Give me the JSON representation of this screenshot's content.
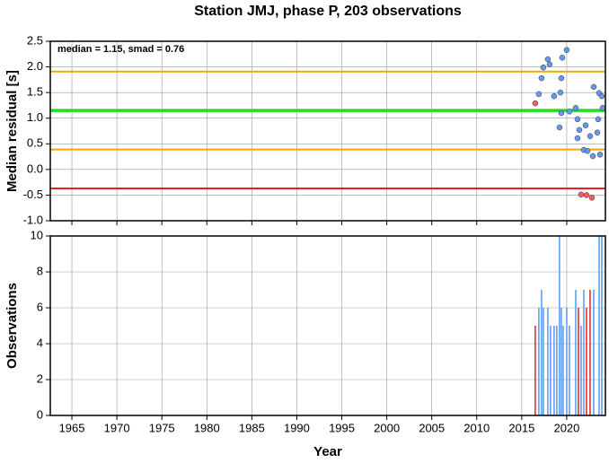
{
  "chart_data": [
    {
      "type": "scatter",
      "title": "Station JMJ, phase P, 203 observations",
      "ylabel": "Median residual [s]",
      "annotation": "median = 1.15, smad = 0.76",
      "xlim": [
        1962.6,
        2024.3
      ],
      "xticks": [
        1965,
        1970,
        1975,
        1980,
        1985,
        1990,
        1995,
        2000,
        2005,
        2010,
        2015,
        2020
      ],
      "ylim": [
        -1.0,
        2.5
      ],
      "yticks": [
        {
          "value": -1.0,
          "label": "-1.0"
        },
        -0.5,
        {
          "value": 0.0,
          "label": "0.0"
        },
        0.5,
        {
          "value": 1.0,
          "label": "1.0"
        },
        1.5,
        {
          "value": 2.0,
          "label": "2.0"
        },
        2.5
      ],
      "grid": true,
      "hlines": [
        {
          "value": 1.91,
          "color": "#f0a800"
        },
        {
          "value": 1.15,
          "color": "#22dd22"
        },
        {
          "value": 0.39,
          "color": "#f0a800"
        },
        {
          "value": -0.37,
          "color": "#e82020"
        }
      ],
      "series": [
        {
          "color": "#6699ee",
          "x": [
            2016.9,
            2017.2,
            2017.4,
            2017.9,
            2018.1,
            2018.6,
            2019.3,
            2019.4,
            2019.5,
            2019.2,
            2019.4,
            2020.0,
            2020.3,
            2021.0,
            2021.2,
            2021.4,
            2021.2,
            2021.9,
            2022.3,
            2022.1,
            2022.6,
            2022.9,
            2023.0,
            2023.4,
            2023.5,
            2023.7,
            2023.6,
            2024.0,
            2023.9
          ],
          "values": [
            1.47,
            1.78,
            1.99,
            2.15,
            2.05,
            1.43,
            1.5,
            1.78,
            2.18,
            0.82,
            1.1,
            2.33,
            1.13,
            1.2,
            0.98,
            0.77,
            0.61,
            0.38,
            0.36,
            0.86,
            0.65,
            0.26,
            1.61,
            0.72,
            0.98,
            0.29,
            1.49,
            1.2,
            1.43
          ]
        },
        {
          "color": "#f06060",
          "x": [
            2016.5,
            2021.6,
            2022.2,
            2022.8
          ],
          "values": [
            1.29,
            -0.49,
            -0.5,
            -0.55
          ]
        }
      ]
    },
    {
      "type": "bar",
      "ylabel": "Observations",
      "xlabel": "Year",
      "xlim": [
        1962.6,
        2024.3
      ],
      "xticks": [
        1965,
        1970,
        1975,
        1980,
        1985,
        1990,
        1995,
        2000,
        2005,
        2010,
        2015,
        2020
      ],
      "ylim": [
        0,
        10
      ],
      "yticks": [
        0,
        2,
        4,
        6,
        8,
        10
      ],
      "grid": true,
      "series": [
        {
          "color": "#5599ee",
          "x": [
            2016.9,
            2017.2,
            2017.4,
            2017.9,
            2018.2,
            2018.6,
            2018.9,
            2019.2,
            2019.4,
            2019.6,
            2020.0,
            2020.3,
            2021.0,
            2021.6,
            2021.9,
            2023.0,
            2023.6,
            2023.9
          ],
          "values": [
            6,
            7,
            6,
            6,
            5,
            5,
            5,
            10,
            6,
            5,
            6,
            5,
            7,
            5,
            7,
            7,
            10,
            10
          ]
        },
        {
          "color": "#dd2222",
          "x": [
            2016.5,
            2021.3,
            2022.2,
            2022.6
          ],
          "values": [
            5,
            6,
            6,
            7
          ]
        }
      ]
    }
  ]
}
